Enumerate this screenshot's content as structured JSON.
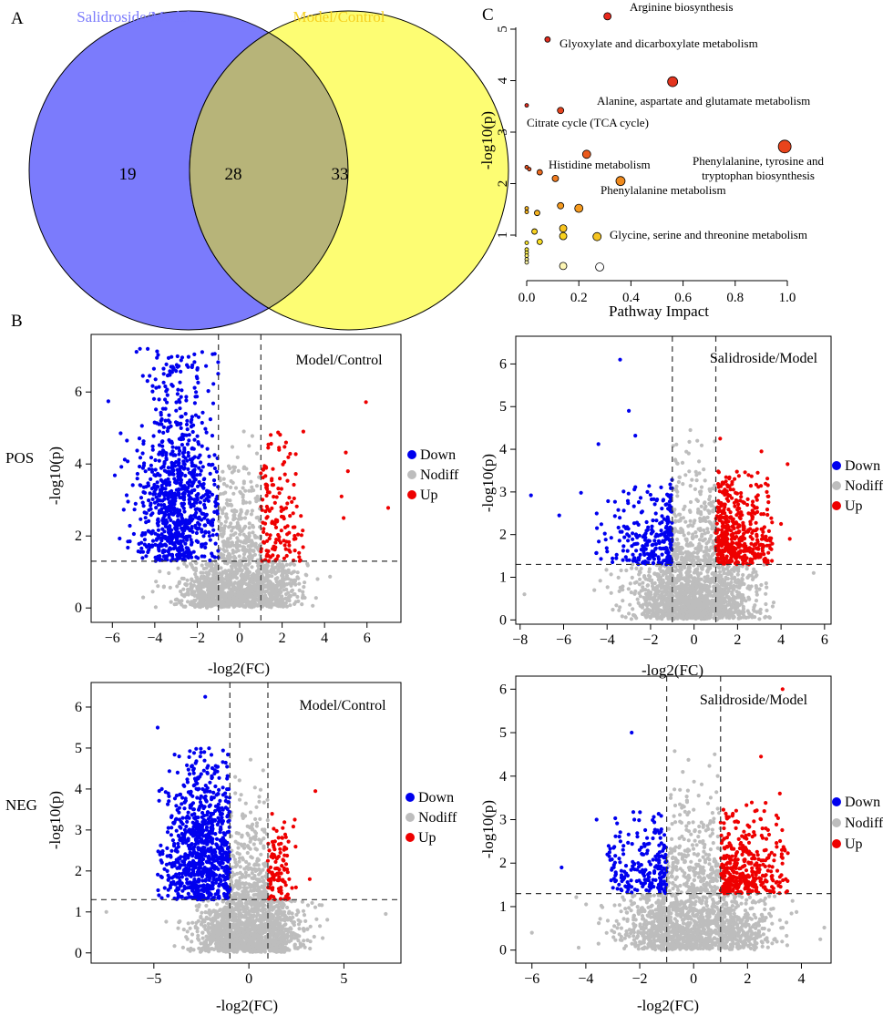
{
  "figure": {
    "panel_labels": {
      "a": "A",
      "b": "B",
      "c": "C"
    },
    "row_labels": {
      "pos": "POS",
      "neg": "NEG"
    }
  },
  "chart_data": [
    {
      "id": "venn",
      "type": "venn",
      "sets": [
        {
          "name": "Salidroside/Model",
          "color": "#7b7bfc",
          "only": "19"
        },
        {
          "name": "Model/Control",
          "color": "#fdfd73",
          "only": "33"
        }
      ],
      "intersection": "28",
      "intersection_color": "#b7b479"
    },
    {
      "id": "pathway",
      "type": "scatter",
      "xlabel": "Pathway Impact",
      "ylabel": "-log10(p)",
      "xlim": [
        0,
        1.0
      ],
      "ylim": [
        0.3,
        5.35
      ],
      "xticks": [
        "0.0",
        "0.2",
        "0.4",
        "0.6",
        "0.8",
        "1.0"
      ],
      "yticks": [
        "1",
        "2",
        "3",
        "4",
        "5"
      ],
      "points": [
        {
          "x": 0.31,
          "y": 5.25,
          "size": 4,
          "color": "#e8281c",
          "label": "Arginine biosynthesis"
        },
        {
          "x": 0.08,
          "y": 4.8,
          "size": 3,
          "color": "#e02d1f",
          "label": "Glyoxylate and dicarboxylate metabolism"
        },
        {
          "x": 0.56,
          "y": 3.98,
          "size": 5.5,
          "color": "#e3341e",
          "label": "Alanine, aspartate and glutamate metabolism"
        },
        {
          "x": 0.0,
          "y": 3.52,
          "size": 2,
          "color": "#e02d1f",
          "label": ""
        },
        {
          "x": 0.13,
          "y": 3.42,
          "size": 3.5,
          "color": "#e5431e",
          "label": "Citrate cycle (TCA cycle)"
        },
        {
          "x": 0.99,
          "y": 2.72,
          "size": 7,
          "color": "#e9441c",
          "label": "Phenylalanine, tyrosine and tryptophan biosynthesis"
        },
        {
          "x": 0.23,
          "y": 2.57,
          "size": 4.5,
          "color": "#ea5a1c",
          "label": "Histidine metabolism"
        },
        {
          "x": 0.36,
          "y": 2.05,
          "size": 5,
          "color": "#ef8a1e",
          "label": "Phenylalanine metabolism"
        },
        {
          "x": 0.0,
          "y": 2.32,
          "size": 2,
          "color": "#e8501f",
          "label": ""
        },
        {
          "x": 0.01,
          "y": 2.28,
          "size": 2,
          "color": "#e8501f",
          "label": ""
        },
        {
          "x": 0.05,
          "y": 2.22,
          "size": 3,
          "color": "#ec6a1f",
          "label": ""
        },
        {
          "x": 0.11,
          "y": 2.1,
          "size": 3.5,
          "color": "#ef7b1f",
          "label": ""
        },
        {
          "x": 0.13,
          "y": 1.57,
          "size": 3.5,
          "color": "#f59a1f",
          "label": ""
        },
        {
          "x": 0.2,
          "y": 1.52,
          "size": 4.5,
          "color": "#f59a1f",
          "label": ""
        },
        {
          "x": 0.0,
          "y": 1.52,
          "size": 2,
          "color": "#f5b31f",
          "label": ""
        },
        {
          "x": 0.0,
          "y": 1.45,
          "size": 2,
          "color": "#f5b31f",
          "label": ""
        },
        {
          "x": 0.04,
          "y": 1.43,
          "size": 3,
          "color": "#f5b31f",
          "label": ""
        },
        {
          "x": 0.14,
          "y": 1.13,
          "size": 4,
          "color": "#f8c41f",
          "label": ""
        },
        {
          "x": 0.03,
          "y": 1.07,
          "size": 3,
          "color": "#f9d21f",
          "label": ""
        },
        {
          "x": 0.14,
          "y": 0.98,
          "size": 4,
          "color": "#f9d21f",
          "label": ""
        },
        {
          "x": 0.27,
          "y": 0.97,
          "size": 4.5,
          "color": "#f5c421",
          "label": "Glycine, serine and threonine metabolism"
        },
        {
          "x": 0.05,
          "y": 0.87,
          "size": 3,
          "color": "#fadf22",
          "label": ""
        },
        {
          "x": 0.0,
          "y": 0.85,
          "size": 2,
          "color": "#fbe626",
          "label": ""
        },
        {
          "x": 0.0,
          "y": 0.72,
          "size": 2,
          "color": "#fdee3b",
          "label": ""
        },
        {
          "x": 0.0,
          "y": 0.66,
          "size": 2,
          "color": "#fdef4c",
          "label": ""
        },
        {
          "x": 0.0,
          "y": 0.6,
          "size": 2,
          "color": "#fef26a",
          "label": ""
        },
        {
          "x": 0.0,
          "y": 0.53,
          "size": 2,
          "color": "#fef58a",
          "label": ""
        },
        {
          "x": 0.0,
          "y": 0.47,
          "size": 2,
          "color": "#fef8a8",
          "label": ""
        },
        {
          "x": 0.14,
          "y": 0.4,
          "size": 4,
          "color": "#fdf6b5",
          "label": ""
        },
        {
          "x": 0.28,
          "y": 0.38,
          "size": 4.5,
          "color": "#ffffff",
          "label": ""
        }
      ]
    },
    {
      "id": "volcano-pos-mc",
      "type": "scatter",
      "subtype": "volcano",
      "title": "Model/Control",
      "xlabel": "-log2(FC)",
      "ylabel": "-log10(p)",
      "xlim": [
        -7,
        7.6
      ],
      "ylim": [
        -0.4,
        7.6
      ],
      "xticks": [
        -6,
        -4,
        -2,
        0,
        2,
        4,
        6
      ],
      "yticks": [
        0,
        2,
        4,
        6
      ],
      "fc_threshold": 1,
      "p_threshold": 1.3,
      "legend": [
        "Down",
        "Nodiff",
        "Up"
      ],
      "colors": {
        "down": "#0000ee",
        "nodiff": "#bdbdbd",
        "up": "#ee0000"
      },
      "sim": {
        "down": 900,
        "up": 150,
        "nodiff": 1500,
        "down_x": [
          -6.5,
          -1.0
        ],
        "up_x": [
          1.0,
          3.0
        ],
        "down_ymax": 7.2,
        "up_ymax": 5.0,
        "down_center": -3.0
      },
      "outliers": [
        [
          5.95,
          5.72
        ],
        [
          5.0,
          4.32
        ],
        [
          5.1,
          3.8
        ],
        [
          7.0,
          2.78
        ],
        [
          4.8,
          3.1
        ],
        [
          4.9,
          2.5
        ],
        [
          3.0,
          4.9
        ],
        [
          -4.7,
          7.2
        ],
        [
          -3.9,
          6.95
        ]
      ]
    },
    {
      "id": "volcano-pos-sm",
      "type": "scatter",
      "subtype": "volcano",
      "title": "Salidroside/Model",
      "xlabel": "-log2(FC)",
      "ylabel": "-log10(p)",
      "xlim": [
        -8.2,
        6.3
      ],
      "ylim": [
        -0.1,
        6.65
      ],
      "xticks": [
        -8,
        -6,
        -4,
        -2,
        0,
        2,
        4,
        6
      ],
      "yticks": [
        0,
        1,
        2,
        3,
        4,
        5,
        6
      ],
      "fc_threshold": 1,
      "p_threshold": 1.3,
      "legend": [
        "Down",
        "Nodiff",
        "Up"
      ],
      "colors": {
        "down": "#0000ee",
        "nodiff": "#bdbdbd",
        "up": "#ee0000"
      },
      "sim": {
        "down": 260,
        "up": 480,
        "nodiff": 1700,
        "down_x": [
          -4.8,
          -1.0
        ],
        "up_x": [
          1.0,
          3.6
        ],
        "down_ymax": 3.4,
        "up_ymax": 3.5,
        "down_center": -1.9
      },
      "outliers": [
        [
          -7.5,
          2.92
        ],
        [
          -6.2,
          2.45
        ],
        [
          -5.2,
          2.98
        ],
        [
          -4.4,
          4.12
        ],
        [
          -3.4,
          6.1
        ],
        [
          -3.0,
          4.9
        ],
        [
          -2.7,
          4.32
        ],
        [
          4.3,
          3.65
        ],
        [
          4.0,
          2.25
        ],
        [
          4.4,
          1.9
        ],
        [
          3.1,
          3.95
        ],
        [
          1.2,
          4.25
        ],
        [
          5.5,
          1.1
        ],
        [
          -7.8,
          0.6
        ]
      ]
    },
    {
      "id": "volcano-neg-mc",
      "type": "scatter",
      "subtype": "volcano",
      "title": "Model/Control",
      "xlabel": "-log2(FC)",
      "ylabel": "-log10(p)",
      "xlim": [
        -8.3,
        8.0
      ],
      "ylim": [
        -0.25,
        6.6
      ],
      "xticks": [
        -5,
        0,
        5
      ],
      "yticks": [
        0,
        1,
        2,
        3,
        4,
        5,
        6
      ],
      "fc_threshold": 1,
      "p_threshold": 1.3,
      "legend": [
        "Down",
        "Nodiff",
        "Up"
      ],
      "colors": {
        "down": "#0000ee",
        "nodiff": "#bdbdbd",
        "up": "#ee0000"
      },
      "sim": {
        "down": 850,
        "up": 110,
        "nodiff": 1700,
        "down_x": [
          -4.8,
          -1.0
        ],
        "up_x": [
          1.0,
          2.5
        ],
        "down_ymax": 5.0,
        "up_ymax": 3.4,
        "down_center": -2.5
      },
      "outliers": [
        [
          -4.8,
          5.5
        ],
        [
          -2.3,
          6.25
        ],
        [
          3.5,
          3.95
        ],
        [
          3.2,
          1.8
        ],
        [
          -7.5,
          1.0
        ],
        [
          7.2,
          0.95
        ]
      ]
    },
    {
      "id": "volcano-neg-sm",
      "type": "scatter",
      "subtype": "volcano",
      "title": "Salidroside/Model",
      "xlabel": "-log2(FC)",
      "ylabel": "-log10(p)",
      "xlim": [
        -6.6,
        5.1
      ],
      "ylim": [
        -0.3,
        6.3
      ],
      "xticks": [
        -6,
        -4,
        -2,
        0,
        2,
        4
      ],
      "yticks": [
        0,
        1,
        2,
        3,
        4,
        5,
        6
      ],
      "fc_threshold": 1,
      "p_threshold": 1.3,
      "legend": [
        "Down",
        "Nodiff",
        "Up"
      ],
      "colors": {
        "down": "#0000ee",
        "nodiff": "#bdbdbd",
        "up": "#ee0000"
      },
      "sim": {
        "down": 210,
        "up": 360,
        "nodiff": 1600,
        "down_x": [
          -3.2,
          -1.0
        ],
        "up_x": [
          1.0,
          3.5
        ],
        "down_ymax": 3.2,
        "up_ymax": 3.4,
        "down_center": -1.8
      },
      "outliers": [
        [
          -2.3,
          5.0
        ],
        [
          -4.9,
          1.9
        ],
        [
          -3.6,
          3.0
        ],
        [
          -3.2,
          2.2
        ],
        [
          2.5,
          4.45
        ],
        [
          3.3,
          6.0
        ],
        [
          3.2,
          3.6
        ],
        [
          -6.0,
          0.4
        ],
        [
          4.7,
          0.25
        ]
      ]
    }
  ]
}
